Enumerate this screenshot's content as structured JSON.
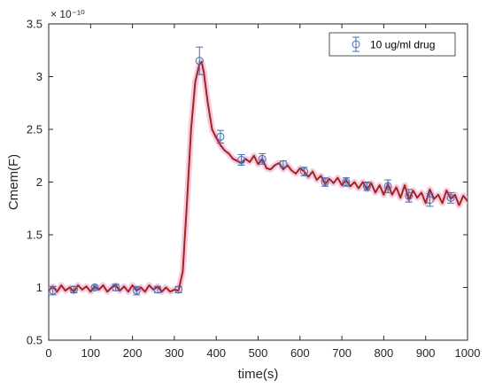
{
  "chart_data": {
    "type": "line",
    "title": "",
    "xlabel": "time(s)",
    "ylabel": "Cmem(F)",
    "y_multiplier_label": "× 10⁻¹⁰",
    "xlim": [
      0,
      1000
    ],
    "ylim": [
      0.5,
      3.5
    ],
    "xticks": [
      0,
      100,
      200,
      300,
      400,
      500,
      600,
      700,
      800,
      900,
      1000
    ],
    "yticks": [
      0.5,
      1,
      1.5,
      2,
      2.5,
      3,
      3.5
    ],
    "xtick_labels": [
      "0",
      "100",
      "200",
      "300",
      "400",
      "500",
      "600",
      "700",
      "800",
      "900",
      "1000"
    ],
    "ytick_labels": [
      "0.5",
      "1",
      "1.5",
      "2",
      "2.5",
      "3",
      "3.5"
    ],
    "grid": false,
    "legend_position": "top-right",
    "legend_entries": [
      "10 ug/ml drug"
    ],
    "series": [
      {
        "name": "",
        "kind": "line",
        "color": "#a3231f",
        "halo_color": "#f4b8d8",
        "x": [
          0,
          10,
          20,
          30,
          40,
          50,
          60,
          70,
          80,
          90,
          100,
          110,
          120,
          130,
          140,
          150,
          160,
          170,
          180,
          190,
          200,
          210,
          220,
          230,
          240,
          250,
          260,
          270,
          280,
          290,
          300,
          310,
          320,
          330,
          340,
          350,
          360,
          365,
          370,
          380,
          390,
          400,
          410,
          420,
          430,
          440,
          450,
          460,
          470,
          480,
          490,
          500,
          510,
          520,
          530,
          540,
          550,
          560,
          570,
          580,
          590,
          600,
          610,
          620,
          630,
          640,
          650,
          660,
          670,
          680,
          690,
          700,
          710,
          720,
          730,
          740,
          750,
          760,
          770,
          780,
          790,
          800,
          810,
          820,
          830,
          840,
          850,
          860,
          870,
          880,
          890,
          900,
          910,
          920,
          930,
          940,
          950,
          960,
          970,
          980,
          990,
          1000
        ],
        "y": [
          0.97,
          1.01,
          0.96,
          1.02,
          0.97,
          1.0,
          0.96,
          1.02,
          0.98,
          1.01,
          0.96,
          1.01,
          0.98,
          1.02,
          0.96,
          1.0,
          1.02,
          0.97,
          1.01,
          0.96,
          1.02,
          0.97,
          1.0,
          0.96,
          1.02,
          0.98,
          1.01,
          0.96,
          1.0,
          0.96,
          0.98,
          0.97,
          1.15,
          1.8,
          2.5,
          2.95,
          3.12,
          3.14,
          3.05,
          2.75,
          2.5,
          2.42,
          2.35,
          2.3,
          2.27,
          2.22,
          2.2,
          2.18,
          2.22,
          2.19,
          2.25,
          2.17,
          2.22,
          2.13,
          2.12,
          2.16,
          2.18,
          2.12,
          2.16,
          2.11,
          2.08,
          2.13,
          2.1,
          2.05,
          2.1,
          2.02,
          2.06,
          1.98,
          2.03,
          1.99,
          2.04,
          1.97,
          2.02,
          1.96,
          2.0,
          1.94,
          2.0,
          1.93,
          1.99,
          1.9,
          1.97,
          1.88,
          1.98,
          1.88,
          1.95,
          1.85,
          1.97,
          1.83,
          1.92,
          1.85,
          1.9,
          1.8,
          1.93,
          1.84,
          1.88,
          1.8,
          1.92,
          1.84,
          1.88,
          1.78,
          1.87,
          1.82
        ]
      },
      {
        "name": "10 ug/ml drug",
        "kind": "errorbar",
        "color": "#3f6fb5",
        "marker": "circle",
        "x": [
          10,
          60,
          110,
          160,
          210,
          260,
          310,
          360,
          410,
          460,
          510,
          560,
          610,
          660,
          710,
          760,
          810,
          860,
          910,
          960
        ],
        "y": [
          0.97,
          0.98,
          1.0,
          1.0,
          0.97,
          0.98,
          0.98,
          3.15,
          2.43,
          2.21,
          2.22,
          2.17,
          2.1,
          2.0,
          2.0,
          1.96,
          1.96,
          1.87,
          1.83,
          1.85
        ],
        "err": [
          0.04,
          0.03,
          0.02,
          0.03,
          0.04,
          0.03,
          0.03,
          0.13,
          0.06,
          0.05,
          0.05,
          0.03,
          0.04,
          0.04,
          0.04,
          0.04,
          0.06,
          0.06,
          0.06,
          0.05
        ]
      }
    ]
  }
}
